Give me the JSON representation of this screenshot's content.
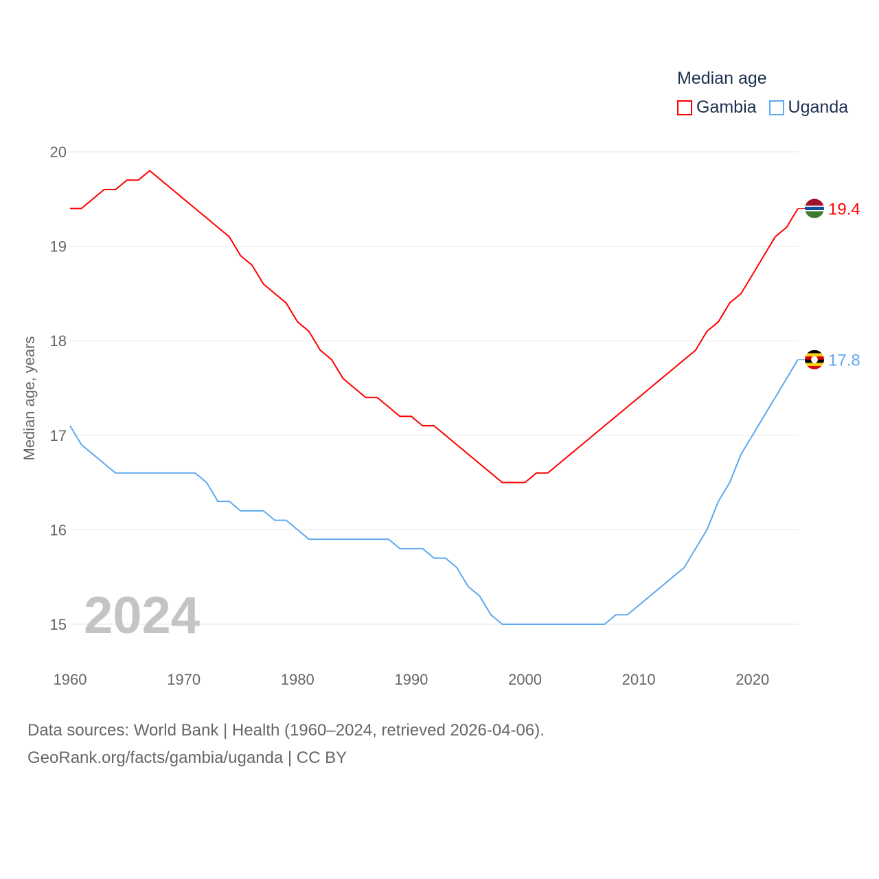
{
  "chart_data": {
    "type": "line",
    "title": "Median age",
    "ylabel": "Median age, years",
    "xlabel": "",
    "xlim": [
      1960,
      2024
    ],
    "ylim": [
      15,
      20
    ],
    "x_ticks": [
      "1960",
      "1970",
      "1980",
      "1990",
      "2000",
      "2010",
      "2020"
    ],
    "y_ticks": [
      "15",
      "16",
      "17",
      "18",
      "19",
      "20"
    ],
    "grid": true,
    "legend_placement": "top-right",
    "year_watermark": "2024",
    "x": [
      1960,
      1961,
      1962,
      1963,
      1964,
      1965,
      1966,
      1967,
      1968,
      1969,
      1970,
      1971,
      1972,
      1973,
      1974,
      1975,
      1976,
      1977,
      1978,
      1979,
      1980,
      1981,
      1982,
      1983,
      1984,
      1985,
      1986,
      1987,
      1988,
      1989,
      1990,
      1991,
      1992,
      1993,
      1994,
      1995,
      1996,
      1997,
      1998,
      1999,
      2000,
      2001,
      2002,
      2003,
      2004,
      2005,
      2006,
      2007,
      2008,
      2009,
      2010,
      2011,
      2012,
      2013,
      2014,
      2015,
      2016,
      2017,
      2018,
      2019,
      2020,
      2021,
      2022,
      2023,
      2024
    ],
    "series": [
      {
        "name": "Gambia",
        "color": "#ff0000",
        "end_label": "19.4",
        "values": [
          19.4,
          19.4,
          19.5,
          19.6,
          19.6,
          19.7,
          19.7,
          19.8,
          19.7,
          19.6,
          19.5,
          19.4,
          19.3,
          19.2,
          19.1,
          18.9,
          18.8,
          18.6,
          18.5,
          18.4,
          18.2,
          18.1,
          17.9,
          17.8,
          17.6,
          17.5,
          17.4,
          17.4,
          17.3,
          17.2,
          17.2,
          17.1,
          17.1,
          17.0,
          16.9,
          16.8,
          16.7,
          16.6,
          16.5,
          16.5,
          16.5,
          16.6,
          16.6,
          16.7,
          16.8,
          16.9,
          17.0,
          17.1,
          17.2,
          17.3,
          17.4,
          17.5,
          17.6,
          17.7,
          17.8,
          17.9,
          18.1,
          18.2,
          18.4,
          18.5,
          18.7,
          18.9,
          19.1,
          19.2,
          19.4
        ]
      },
      {
        "name": "Uganda",
        "color": "#5ea8f0",
        "end_label": "17.8",
        "values": [
          17.1,
          16.9,
          16.8,
          16.7,
          16.6,
          16.6,
          16.6,
          16.6,
          16.6,
          16.6,
          16.6,
          16.6,
          16.5,
          16.3,
          16.3,
          16.2,
          16.2,
          16.2,
          16.1,
          16.1,
          16.0,
          15.9,
          15.9,
          15.9,
          15.9,
          15.9,
          15.9,
          15.9,
          15.9,
          15.8,
          15.8,
          15.8,
          15.7,
          15.7,
          15.6,
          15.4,
          15.3,
          15.1,
          15.0,
          15.0,
          15.0,
          15.0,
          15.0,
          15.0,
          15.0,
          15.0,
          15.0,
          15.0,
          15.1,
          15.1,
          15.2,
          15.3,
          15.4,
          15.5,
          15.6,
          15.8,
          16.0,
          16.3,
          16.5,
          16.8,
          17.0,
          17.2,
          17.4,
          17.6,
          17.8
        ]
      }
    ]
  },
  "footer": {
    "line1": "Data sources: World Bank | Health (1960–2024, retrieved 2026-04-06).",
    "line2": "GeoRank.org/facts/gambia/uganda | CC BY"
  }
}
